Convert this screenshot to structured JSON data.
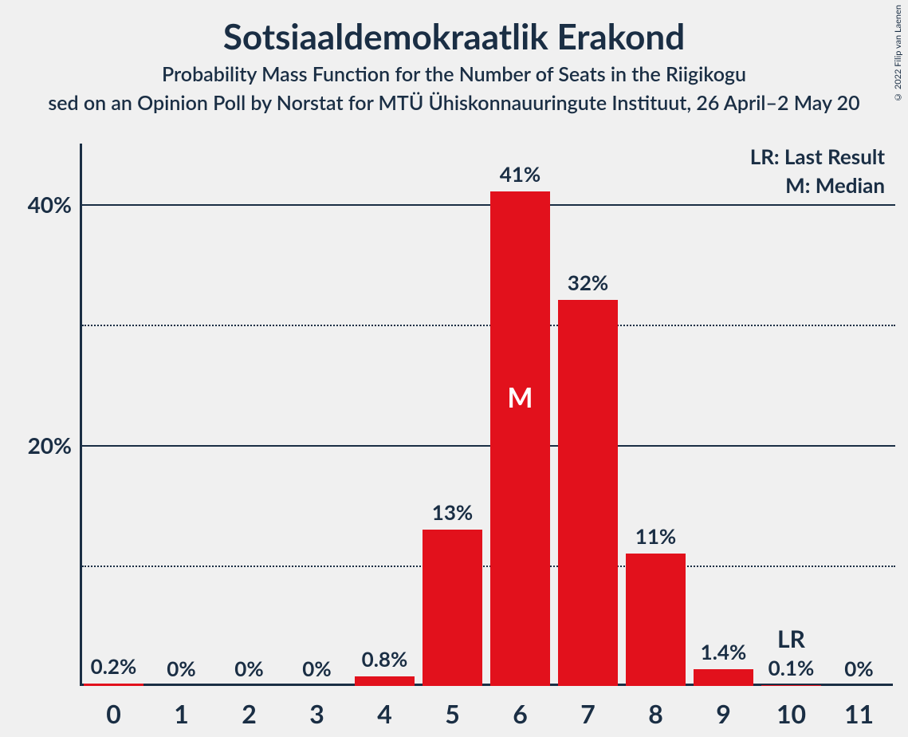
{
  "copyright": "© 2022 Filip van Laenen",
  "titles": {
    "main": "Sotsiaaldemokraatlik Erakond",
    "sub": "Probability Mass Function for the Number of Seats in the Riigikogu",
    "source": "sed on an Opinion Poll by Norstat for MTÜ Ühiskonnauuringute Instituut, 26 April–2 May 20"
  },
  "legend": {
    "lr": "LR: Last Result",
    "m": "M: Median"
  },
  "chart": {
    "type": "bar",
    "bar_color": "#e2111c",
    "text_color": "#1a2e44",
    "background_color": "#f0f0f0",
    "grid_major_color": "#1a2e44",
    "grid_minor_color": "#1a2e44",
    "title_fontsize": 44,
    "subtitle_fontsize": 25,
    "label_fontsize": 26,
    "tick_fontsize": 32,
    "legend_fontsize": 26,
    "ylim": [
      0,
      45
    ],
    "y_axis": {
      "ticks": [
        {
          "value": 40,
          "label": "40%",
          "major": true
        },
        {
          "value": 30,
          "label": "",
          "major": false
        },
        {
          "value": 20,
          "label": "20%",
          "major": true
        },
        {
          "value": 10,
          "label": "",
          "major": false
        }
      ]
    },
    "categories": [
      "0",
      "1",
      "2",
      "3",
      "4",
      "5",
      "6",
      "7",
      "8",
      "9",
      "10",
      "11"
    ],
    "values": [
      0.2,
      0,
      0,
      0,
      0.8,
      13,
      41,
      32,
      11,
      1.4,
      0.1,
      0
    ],
    "value_labels": [
      "0.2%",
      "0%",
      "0%",
      "0%",
      "0.8%",
      "13%",
      "41%",
      "32%",
      "11%",
      "1.4%",
      "0.1%",
      "0%"
    ],
    "median_index": 6,
    "median_marker": "M",
    "lr_index": 10,
    "lr_marker": "LR",
    "bar_width_ratio": 0.88
  }
}
